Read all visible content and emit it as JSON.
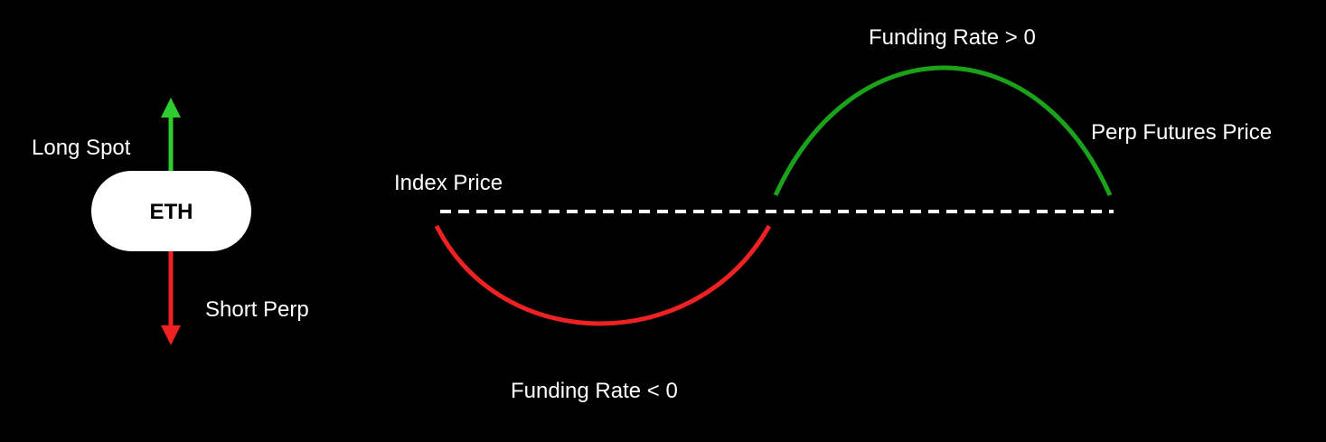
{
  "asset": {
    "label": "ETH",
    "up_label": "Long Spot",
    "down_label": "Short Perp",
    "up_color": "#2ecc2e",
    "down_color": "#ee2222"
  },
  "prices": {
    "index_label": "Index Price",
    "perp_label": "Perp Futures Price",
    "index_line_color": "#ffffff"
  },
  "funding": {
    "positive_label": "Funding Rate > 0",
    "negative_label": "Funding Rate < 0",
    "positive_color": "#1aa31a",
    "negative_color": "#ee2222"
  },
  "background_color": "#000000"
}
